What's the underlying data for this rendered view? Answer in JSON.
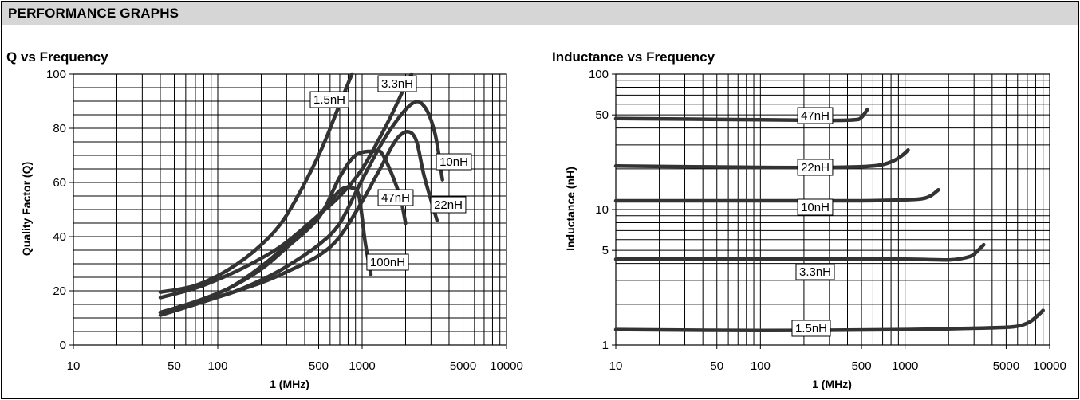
{
  "header": {
    "title": "PERFORMANCE GRAPHS"
  },
  "chart_data": [
    {
      "type": "line",
      "title": "Q vs Frequency",
      "xlabel": "1 (MHz)",
      "ylabel": "Quality Factor (Q)",
      "xscale": "log",
      "xlim": [
        10,
        10000
      ],
      "ylim": [
        0,
        100
      ],
      "xticks": [
        "10",
        "50",
        "100",
        "500",
        "1000",
        "5000",
        "10000"
      ],
      "yticks": [
        "0",
        "20",
        "40",
        "60",
        "80",
        "100"
      ],
      "grid": true,
      "series": [
        {
          "name": "1.5nH",
          "points": [
            [
              40,
              19.5
            ],
            [
              70,
              22
            ],
            [
              120,
              28
            ],
            [
              200,
              37
            ],
            [
              300,
              48
            ],
            [
              500,
              70
            ],
            [
              700,
              89
            ],
            [
              850,
              100
            ]
          ]
        },
        {
          "name": "3.3nH",
          "points": [
            [
              40,
              17.5
            ],
            [
              70,
              21
            ],
            [
              120,
              26
            ],
            [
              200,
              32
            ],
            [
              300,
              38
            ],
            [
              500,
              48
            ],
            [
              700,
              55
            ],
            [
              1000,
              65
            ],
            [
              1500,
              82
            ],
            [
              2000,
              96
            ],
            [
              2200,
              100
            ]
          ]
        },
        {
          "name": "10nH",
          "points": [
            [
              40,
              12
            ],
            [
              70,
              15.5
            ],
            [
              120,
              19
            ],
            [
              200,
              24
            ],
            [
              300,
              29
            ],
            [
              500,
              37
            ],
            [
              700,
              45
            ],
            [
              1000,
              61
            ],
            [
              1500,
              78
            ],
            [
              2200,
              89
            ],
            [
              2700,
              88
            ],
            [
              3200,
              78
            ],
            [
              3600,
              61
            ]
          ]
        },
        {
          "name": "22nH",
          "points": [
            [
              40,
              11
            ],
            [
              70,
              15
            ],
            [
              120,
              19
            ],
            [
              200,
              23
            ],
            [
              300,
              27
            ],
            [
              500,
              33
            ],
            [
              700,
              40
            ],
            [
              1000,
              53
            ],
            [
              1300,
              64
            ],
            [
              1800,
              77
            ],
            [
              2300,
              77
            ],
            [
              2700,
              62
            ],
            [
              3300,
              46
            ]
          ]
        },
        {
          "name": "47nH",
          "points": [
            [
              40,
              12
            ],
            [
              70,
              16
            ],
            [
              120,
              21
            ],
            [
              200,
              28
            ],
            [
              300,
              36
            ],
            [
              500,
              47
            ],
            [
              700,
              62
            ],
            [
              900,
              70
            ],
            [
              1200,
              71.5
            ],
            [
              1400,
              70
            ],
            [
              1800,
              56
            ],
            [
              2000,
              45
            ]
          ]
        },
        {
          "name": "100nH",
          "points": [
            [
              40,
              12
            ],
            [
              70,
              16
            ],
            [
              120,
              21
            ],
            [
              200,
              29
            ],
            [
              300,
              37
            ],
            [
              500,
              48
            ],
            [
              700,
              57
            ],
            [
              850,
              58
            ],
            [
              950,
              55
            ],
            [
              1050,
              38
            ],
            [
              1150,
              26
            ]
          ]
        }
      ]
    },
    {
      "type": "line",
      "title": "Inductance vs Frequency",
      "xlabel": "1 (MHz)",
      "ylabel": "Inductance (nH)",
      "xscale": "log",
      "yscale": "log",
      "xlim": [
        10,
        10000
      ],
      "ylim": [
        1,
        100
      ],
      "xticks": [
        "10",
        "50",
        "100",
        "500",
        "1000",
        "5000",
        "10000"
      ],
      "yticks": [
        "1",
        "5",
        "10",
        "50",
        "100"
      ],
      "grid": true,
      "series": [
        {
          "name": "47nH",
          "points": [
            [
              10,
              47
            ],
            [
              100,
              46
            ],
            [
              300,
              45.5
            ],
            [
              450,
              46
            ],
            [
              500,
              48
            ],
            [
              550,
              55
            ]
          ]
        },
        {
          "name": "22nH",
          "points": [
            [
              10,
              21
            ],
            [
              100,
              20.5
            ],
            [
              300,
              20.5
            ],
            [
              600,
              21
            ],
            [
              800,
              22.5
            ],
            [
              950,
              25
            ],
            [
              1050,
              27.5
            ]
          ]
        },
        {
          "name": "10nH",
          "points": [
            [
              10,
              11.6
            ],
            [
              100,
              11.6
            ],
            [
              500,
              11.6
            ],
            [
              1000,
              11.8
            ],
            [
              1300,
              12
            ],
            [
              1500,
              12.6
            ],
            [
              1700,
              14
            ]
          ]
        },
        {
          "name": "3.3nH",
          "points": [
            [
              10,
              4.3
            ],
            [
              100,
              4.3
            ],
            [
              1000,
              4.3
            ],
            [
              2000,
              4.25
            ],
            [
              2800,
              4.5
            ],
            [
              3200,
              5
            ],
            [
              3500,
              5.5
            ]
          ]
        },
        {
          "name": "1.5nH",
          "points": [
            [
              10,
              1.3
            ],
            [
              100,
              1.28
            ],
            [
              1000,
              1.3
            ],
            [
              3000,
              1.33
            ],
            [
              5500,
              1.36
            ],
            [
              7000,
              1.45
            ],
            [
              8000,
              1.6
            ],
            [
              9000,
              1.8
            ]
          ]
        }
      ]
    }
  ]
}
